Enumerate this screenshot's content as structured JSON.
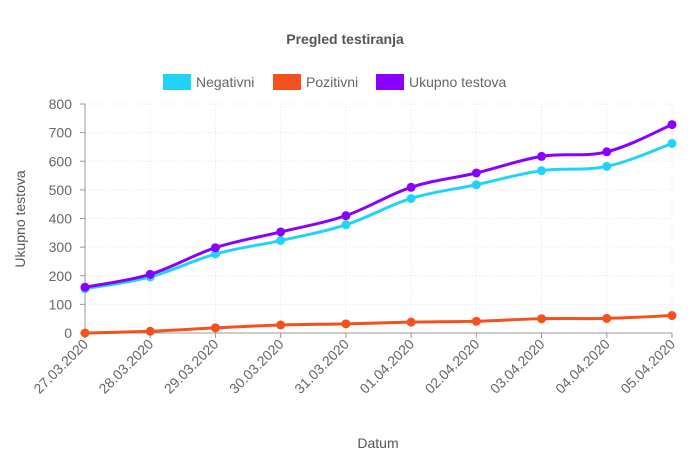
{
  "chart_data": {
    "type": "line",
    "title": "Pregled testiranja",
    "xlabel": "Datum",
    "ylabel": "Ukupno testova",
    "ylim": [
      0,
      800
    ],
    "yticks": [
      0,
      100,
      200,
      300,
      400,
      500,
      600,
      700,
      800
    ],
    "grid": true,
    "legend_position": "top",
    "categories": [
      "27.03.2020",
      "28.03.2020",
      "29.03.2020",
      "30.03.2020",
      "31.03.2020",
      "01.04.2020",
      "02.04.2020",
      "03.04.2020",
      "04.04.2020",
      "05.04.2020"
    ],
    "series": [
      {
        "name": "Negativni",
        "color": "#21d4f7",
        "values": [
          155,
          196,
          276,
          323,
          378,
          470,
          518,
          567,
          582,
          662
        ]
      },
      {
        "name": "Pozitivni",
        "color": "#f4511e",
        "values": [
          0,
          6,
          18,
          28,
          32,
          38,
          41,
          50,
          51,
          61
        ]
      },
      {
        "name": "Ukupno testova",
        "color": "#8a00ff",
        "values": [
          160,
          205,
          298,
          353,
          410,
          509,
          559,
          617,
          633,
          728
        ]
      }
    ]
  }
}
